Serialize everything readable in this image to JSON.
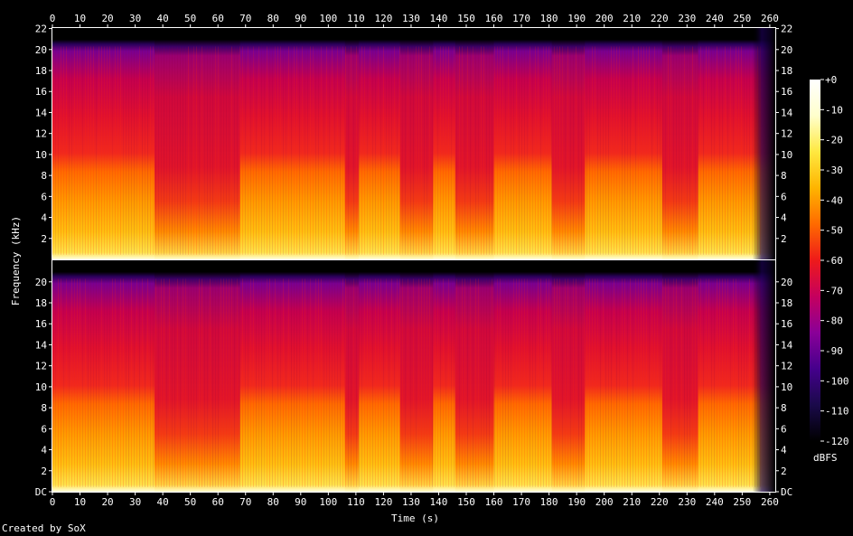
{
  "chart_data": {
    "type": "heatmap",
    "subtype": "spectrogram",
    "channels": 2,
    "xlabel": "Time (s)",
    "ylabel": "Frequency (kHz)",
    "x_ticks": [
      "0",
      "10",
      "20",
      "30",
      "40",
      "50",
      "60",
      "70",
      "80",
      "90",
      "100",
      "110",
      "120",
      "130",
      "140",
      "150",
      "160",
      "170",
      "180",
      "190",
      "200",
      "210",
      "220",
      "230",
      "240",
      "250",
      "260"
    ],
    "x_range": [
      0,
      262
    ],
    "y_ticks_top": [
      "2",
      "4",
      "6",
      "8",
      "10",
      "12",
      "14",
      "16",
      "18",
      "20",
      "22"
    ],
    "y_ticks_bottom": [
      "DC",
      "2",
      "4",
      "6",
      "8",
      "10",
      "12",
      "14",
      "16",
      "18",
      "20"
    ],
    "y_range_khz": [
      0,
      22.05
    ],
    "colorbar": {
      "unit": "dBFS",
      "ticks": [
        "+0",
        "-10",
        "-20",
        "-30",
        "-40",
        "-50",
        "-60",
        "-70",
        "-80",
        "-90",
        "-100",
        "-110",
        "-120"
      ],
      "range": [
        -120,
        0
      ],
      "colors": [
        "#000000",
        "#1a0a4a",
        "#45008c",
        "#8a0098",
        "#c5005e",
        "#ee1a1a",
        "#ff6a00",
        "#ffb400",
        "#ffe840",
        "#ffffcc",
        "#ffffff"
      ]
    },
    "quiet_segments_s": [
      [
        37,
        68
      ],
      [
        106,
        111
      ],
      [
        126,
        138
      ],
      [
        146,
        160
      ],
      [
        181,
        193
      ],
      [
        221,
        234
      ]
    ],
    "content_end_s": 257,
    "grid": false,
    "legend": "right"
  },
  "footer": {
    "credit": "Created by SoX"
  }
}
